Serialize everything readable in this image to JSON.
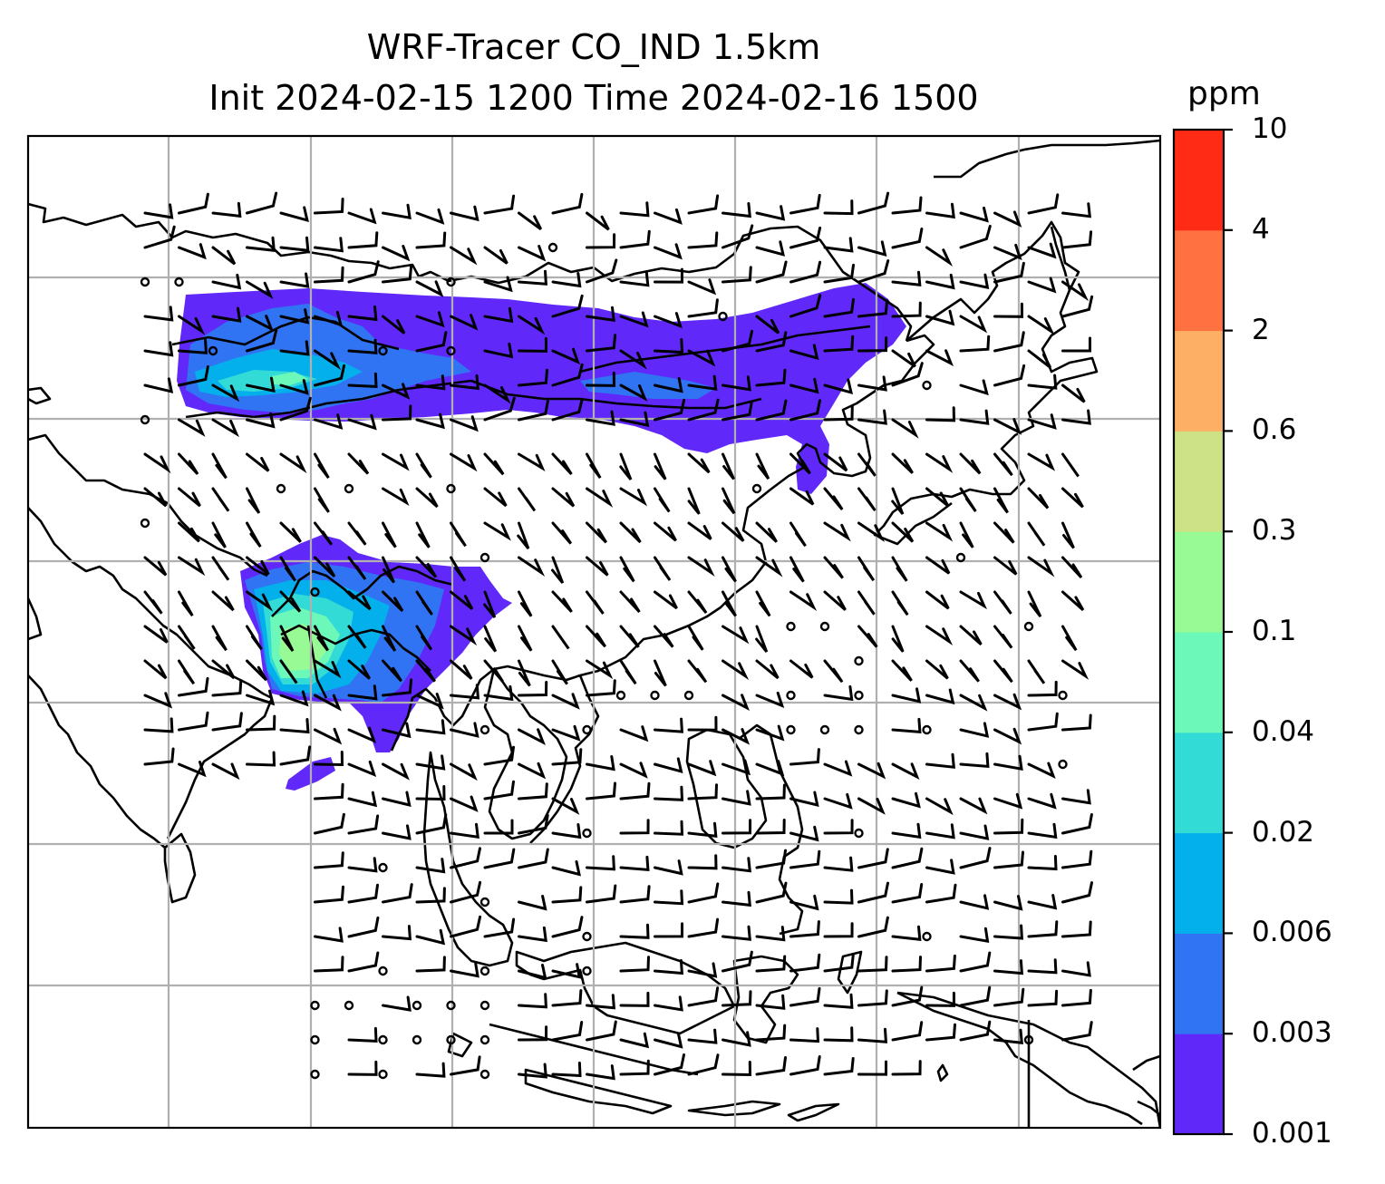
{
  "title": {
    "line1": "WRF-Tracer CO_IND 1.5km",
    "line2": "Init 2024-02-15 1200 Time 2024-02-16 1500"
  },
  "colorbar": {
    "unit": "ppm",
    "levels": [
      "0.001",
      "0.003",
      "0.006",
      "0.02",
      "0.04",
      "0.1",
      "0.3",
      "0.6",
      "2",
      "4",
      "10"
    ],
    "colors": [
      "#6128fa",
      "#3073f3",
      "#04b0eb",
      "#33dbd6",
      "#6cf8b8",
      "#98fa95",
      "#cde186",
      "#fdb065",
      "#ff7140",
      "#ff2b15"
    ]
  },
  "map": {
    "gridlines": true,
    "coastline_color": "#000000",
    "wind_barbs": true,
    "plumes": [
      {
        "name": "north-china-plume",
        "max_level": "0.1"
      },
      {
        "name": "india-bangladesh-plume",
        "max_level": "0.3"
      }
    ]
  }
}
